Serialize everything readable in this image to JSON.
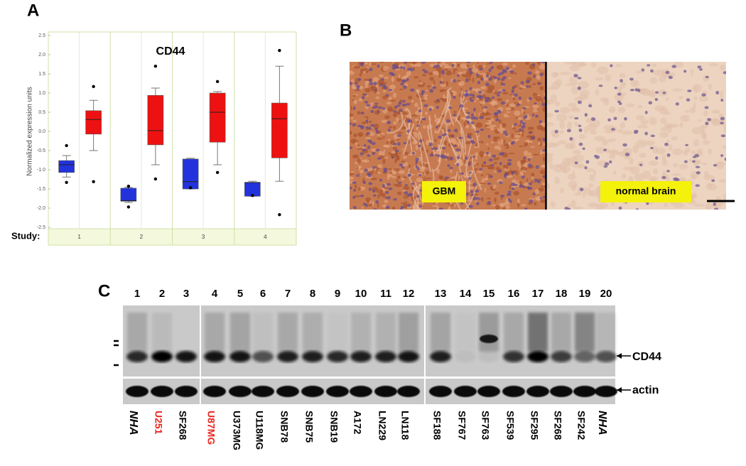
{
  "panel_labels": {
    "a": "A",
    "b": "B",
    "c": "C"
  },
  "chart_data": {
    "type": "box",
    "title": "CD44",
    "ylabel": "Normalized expression units",
    "xlabel": "Study:",
    "categories": [
      "1",
      "2",
      "3",
      "4"
    ],
    "ylim": [
      -2.5,
      2.5
    ],
    "yticks": [
      2.5,
      {
        "value": 2,
        "label": "2.0"
      },
      1.5,
      {
        "value": 1,
        "label": "1.0"
      },
      0.5,
      {
        "value": 0,
        "label": "0.0"
      },
      -0.5,
      {
        "value": -1,
        "label": "-1.0"
      },
      -1.5,
      {
        "value": -2,
        "label": "-2.0"
      },
      -2.5
    ],
    "grid": true,
    "series": [
      {
        "color": "#2233dd",
        "values": [
          {
            "low": -1.19,
            "q1": -1.07,
            "median": -0.87,
            "q3": -0.76,
            "high": -0.63,
            "outliers": [
              -0.37,
              -1.33
            ]
          },
          {
            "low": -1.85,
            "q1": -1.82,
            "median": -1.8,
            "q3": -1.48,
            "high": -1.46,
            "outliers": [
              -1.43,
              -1.97
            ]
          },
          {
            "low": -1.5,
            "q1": -1.5,
            "median": -1.31,
            "q3": -0.72,
            "high": -0.7,
            "outliers": [
              -1.47
            ]
          },
          {
            "low": -1.69,
            "q1": -1.69,
            "median": -1.33,
            "q3": -1.33,
            "high": -1.3,
            "outliers": [
              -1.67
            ]
          }
        ]
      },
      {
        "color": "#ee1111",
        "values": [
          {
            "low": -0.5,
            "q1": -0.07,
            "median": 0.31,
            "q3": 0.54,
            "high": 0.81,
            "outliers": [
              1.17,
              -1.31
            ]
          },
          {
            "low": -0.87,
            "q1": -0.35,
            "median": 0.02,
            "q3": 0.94,
            "high": 1.13,
            "outliers": [
              1.7,
              -1.24
            ]
          },
          {
            "low": -0.87,
            "q1": -0.28,
            "median": 0.5,
            "q3": 1.0,
            "high": 1.04,
            "outliers": [
              1.3,
              -1.07
            ]
          },
          {
            "low": -1.3,
            "q1": -0.69,
            "median": 0.33,
            "q3": 0.74,
            "high": 1.7,
            "outliers": [
              2.11,
              -2.17
            ]
          }
        ]
      }
    ]
  },
  "histology": {
    "left_label": "GBM",
    "right_label": "normal brain"
  },
  "western_blot": {
    "lanes": [
      "1",
      "2",
      "3",
      "4",
      "5",
      "6",
      "7",
      "8",
      "9",
      "10",
      "11",
      "12",
      "13",
      "14",
      "15",
      "16",
      "17",
      "18",
      "19",
      "20"
    ],
    "cell_lines": [
      {
        "label": "NHA",
        "italic": true
      },
      {
        "label": "U251",
        "color": "#e8261f"
      },
      {
        "label": "SF268"
      },
      {
        "label": "U87MG",
        "color": "#e8261f"
      },
      {
        "label": "U373MG"
      },
      {
        "label": "U118MG"
      },
      {
        "label": "SNB78"
      },
      {
        "label": "SNB75"
      },
      {
        "label": "SNB19"
      },
      {
        "label": "A172"
      },
      {
        "label": "LN229"
      },
      {
        "label": "LN118"
      },
      {
        "label": "SF188"
      },
      {
        "label": "SF767"
      },
      {
        "label": "SF763"
      },
      {
        "label": "SF539"
      },
      {
        "label": "SF295"
      },
      {
        "label": "SF268"
      },
      {
        "label": "SF242"
      },
      {
        "label": "NHA",
        "italic": true
      }
    ],
    "band_labels": {
      "cd44": "CD44",
      "actin": "actin"
    }
  }
}
